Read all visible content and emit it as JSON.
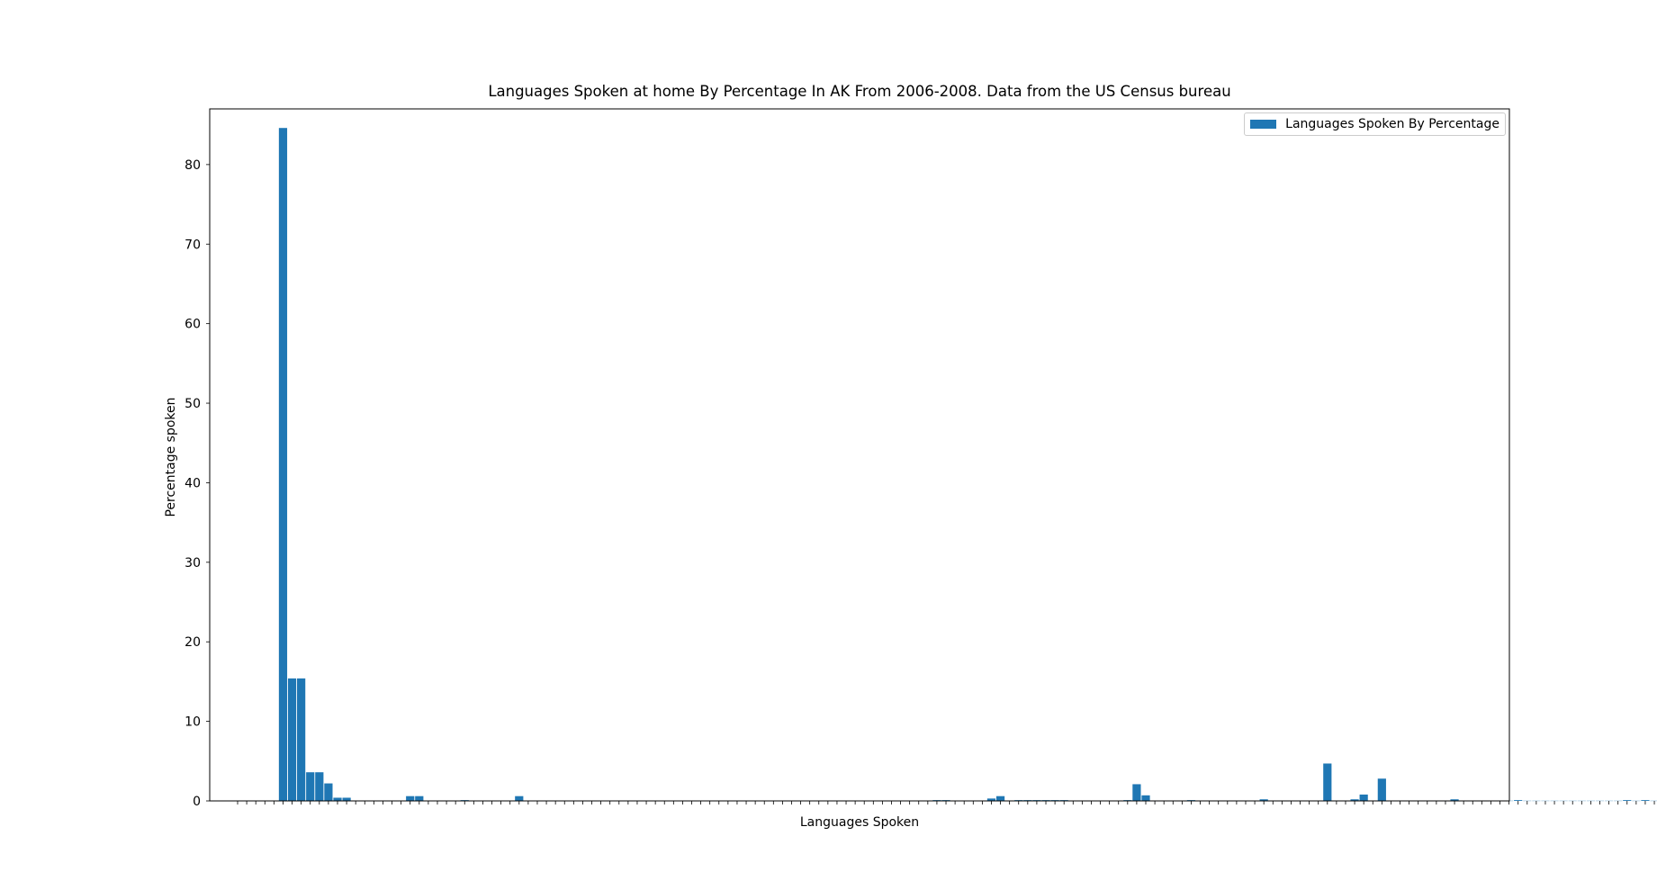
{
  "colors": {
    "bar": "#1f77b4",
    "axes": "#000000"
  },
  "chart_data": {
    "type": "bar",
    "title": "Languages Spoken at home By Percentage In AK From 2006-2008. Data from the US Census bureau",
    "xlabel": "Languages Spoken",
    "ylabel": "Percentage spoken",
    "ylim": [
      0,
      87
    ],
    "yticks": [
      0,
      10,
      20,
      30,
      40,
      50,
      60,
      70,
      80
    ],
    "grid": false,
    "legend": {
      "position": "top-right",
      "entries": [
        "Languages Spoken By Percentage"
      ]
    },
    "categories_note": "",
    "values": [
      0,
      0,
      0,
      0,
      0,
      84.6,
      15.4,
      15.4,
      3.6,
      3.6,
      2.2,
      0.4,
      0.4,
      0.02,
      0.02,
      0.02,
      0.02,
      0.02,
      0.02,
      0.6,
      0.6,
      0.02,
      0.02,
      0.02,
      0.02,
      0.1,
      0.02,
      0.02,
      0.02,
      0.02,
      0.02,
      0.6,
      0.02,
      0.02,
      0.02,
      0.02,
      0.02,
      0.02,
      0.02,
      0.02,
      0.02,
      0.02,
      0.02,
      0.02,
      0.02,
      0.02,
      0.02,
      0.02,
      0.02,
      0.02,
      0.02,
      0.02,
      0.02,
      0.02,
      0.02,
      0.02,
      0.02,
      0.02,
      0.02,
      0.02,
      0.02,
      0.02,
      0.02,
      0.02,
      0.02,
      0.02,
      0.02,
      0.02,
      0.02,
      0.02,
      0.02,
      0.02,
      0.02,
      0.02,
      0.02,
      0.02,
      0.02,
      0.1,
      0.1,
      0.02,
      0.02,
      0.02,
      0.02,
      0.3,
      0.6,
      0.02,
      0.1,
      0.1,
      0.1,
      0.1,
      0.1,
      0.1,
      0.02,
      0.02,
      0.02,
      0.02,
      0.02,
      0.02,
      0.1,
      2.1,
      0.7,
      0.02,
      0.02,
      0.02,
      0.02,
      0.1,
      0.02,
      0.02,
      0.02,
      0.02,
      0.02,
      0.02,
      0.02,
      0.2,
      0.02,
      0.02,
      0.02,
      0.02,
      0.02,
      0.02,
      4.7,
      0.02,
      0.02,
      0.2,
      0.8,
      0.02,
      2.8,
      0.02,
      0.02,
      0.02,
      0.02,
      0.02,
      0.02,
      0.02,
      0.2,
      0.02,
      0.02,
      0.02,
      0.02,
      0.02,
      0.02,
      0.1,
      0.02,
      0.02,
      0.02,
      0.02,
      0.02,
      0.02,
      0.02,
      0.02,
      0.02,
      0.02,
      0.02,
      0.1,
      0.02,
      0.1,
      0.02,
      0.02,
      0.02,
      0.02,
      0.02,
      0.02,
      0.02,
      0.02
    ]
  }
}
